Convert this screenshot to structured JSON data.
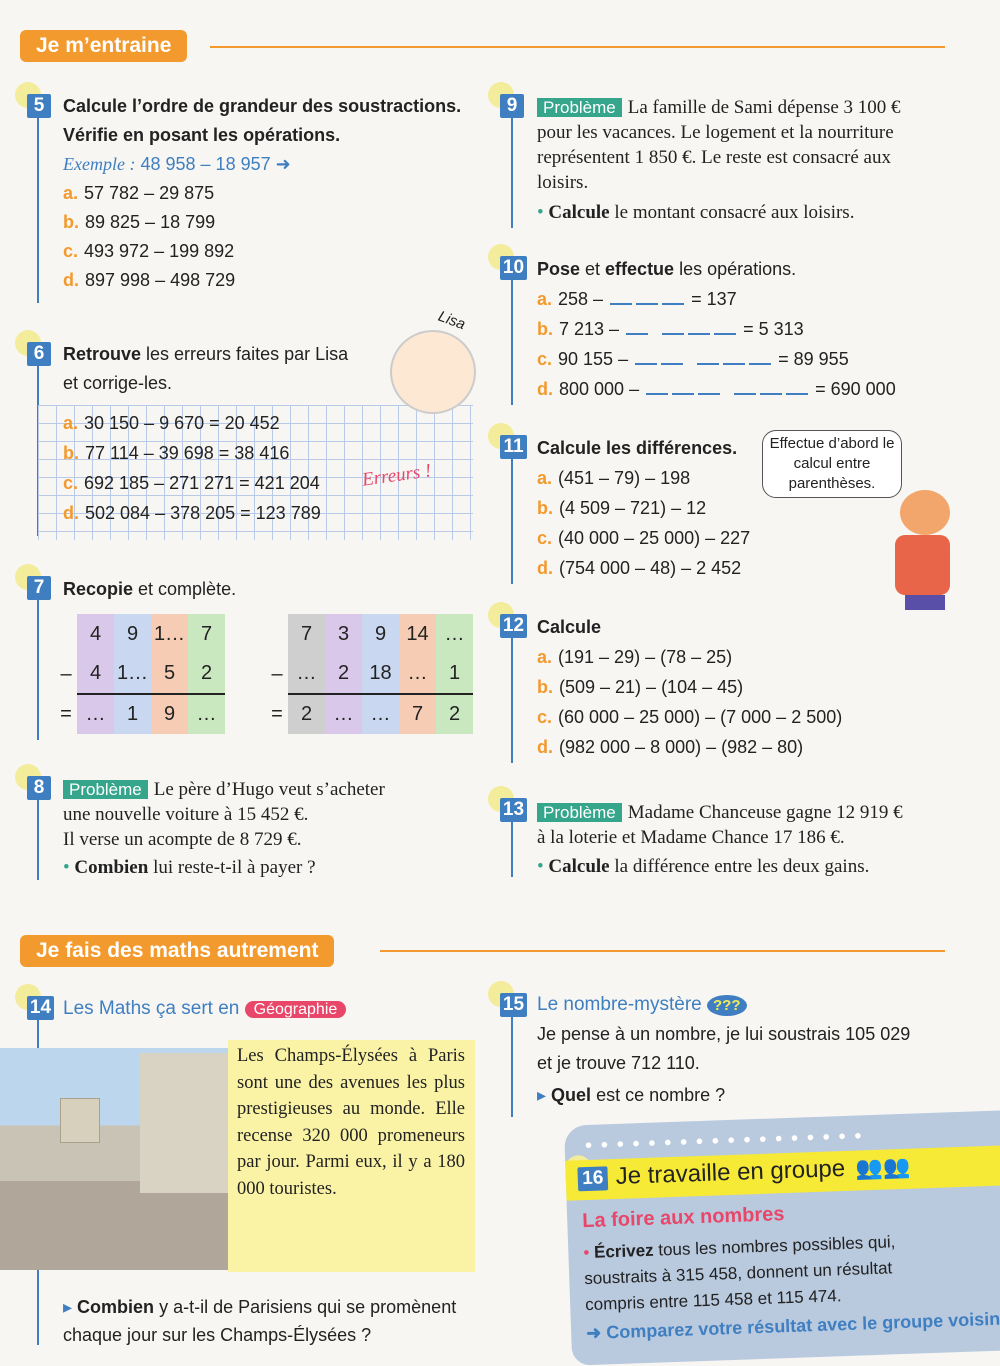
{
  "sections": {
    "train": "Je m’entraine",
    "other": "Je fais des maths autrement"
  },
  "ex5": {
    "num": "5",
    "line1_bold": "Calcule",
    "line1": " l’ordre de grandeur des soustractions.",
    "line2_bold": "Vérifie",
    "line2": " en posant les opérations.",
    "example_label": "Exemple :",
    "example": "48 958 – 18 957 ➜",
    "items": [
      {
        "l": "a.",
        "t": "57 782 – 29 875"
      },
      {
        "l": "b.",
        "t": "89 825 – 18 799"
      },
      {
        "l": "c.",
        "t": "493 972 – 199 892"
      },
      {
        "l": "d.",
        "t": "897 998 – 498 729"
      }
    ]
  },
  "ex6": {
    "num": "6",
    "bold": "Retrouve",
    "text": " les erreurs faites par Lisa",
    "line2": "et corrige-les.",
    "character": "Lisa",
    "errors": "Erreurs !",
    "items": [
      {
        "l": "a.",
        "t": "30 150 – 9 670 = 20 452"
      },
      {
        "l": "b.",
        "t": "77 114 – 39 698 = 38 416"
      },
      {
        "l": "c.",
        "t": "692 185 – 271 271 = 421 204"
      },
      {
        "l": "d.",
        "t": "502 084 – 378 205 = 123 789"
      }
    ]
  },
  "ex7": {
    "num": "7",
    "bold": "Recopie",
    "text": " et complète.",
    "minus": "–",
    "equals": "=",
    "left": [
      [
        "4",
        "9",
        "1…",
        "7"
      ],
      [
        "4",
        "1…",
        "5",
        "2"
      ],
      [
        "…",
        "1",
        "9",
        "…"
      ]
    ],
    "right": [
      [
        "7",
        "3",
        "9",
        "14",
        "…"
      ],
      [
        "…",
        "2",
        "18",
        "…",
        "1"
      ],
      [
        "2",
        "…",
        "…",
        "7",
        "2"
      ]
    ]
  },
  "ex8": {
    "num": "8",
    "badge": "Problème",
    "line1": "Le père d’Hugo veut s’acheter",
    "line2": "une nouvelle voiture à 15 452 €.",
    "line3": "Il verse un acompte de 8 729 €.",
    "q_bold": "Combien",
    "q": " lui reste-t-il à payer ?"
  },
  "ex9": {
    "num": "9",
    "badge": "Problème",
    "line1": "La famille de Sami dépense 3 100 €",
    "line2": "pour les vacances. Le logement et la nourriture",
    "line3": "représentent 1 850 €. Le reste est consacré aux",
    "line4": "loisirs.",
    "q_bold": "Calcule",
    "q": " le montant consacré aux loisirs."
  },
  "ex10": {
    "num": "10",
    "bold1": "Pose",
    "mid": " et ",
    "bold2": "effectue",
    "text": " les opérations.",
    "items": [
      {
        "l": "a.",
        "left": "258 –",
        "right": "= 137"
      },
      {
        "l": "b.",
        "left": "7 213 –",
        "right": "= 5 313"
      },
      {
        "l": "c.",
        "left": "90 155 –",
        "right": "= 89 955"
      },
      {
        "l": "d.",
        "left": "800 000 –",
        "right": "= 690 000"
      }
    ]
  },
  "ex11": {
    "num": "11",
    "bold": "Calcule",
    "text": " les différences.",
    "bubble": "Effectue d’abord le calcul entre parenthèses.",
    "items": [
      {
        "l": "a.",
        "t": "(451 – 79) – 198"
      },
      {
        "l": "b.",
        "t": "(4 509 – 721) – 12"
      },
      {
        "l": "c.",
        "t": "(40 000 – 25 000) – 227"
      },
      {
        "l": "d.",
        "t": "(754 000 – 48) – 2 452"
      }
    ]
  },
  "ex12": {
    "num": "12",
    "bold": "Calcule",
    "items": [
      {
        "l": "a.",
        "t": "(191 – 29) – (78 – 25)"
      },
      {
        "l": "b.",
        "t": "(509 – 21) – (104 – 45)"
      },
      {
        "l": "c.",
        "t": "(60 000 – 25 000) – (7 000 – 2 500)"
      },
      {
        "l": "d.",
        "t": "(982 000 – 8 000) – (982 – 80)"
      }
    ]
  },
  "ex13": {
    "num": "13",
    "badge": "Problème",
    "line1": "Madame Chanceuse gagne 12 919 €",
    "line2": "à la loterie et Madame Chance 17 186 €.",
    "q_bold": "Calcule",
    "q": " la différence entre les deux gains."
  },
  "ex14": {
    "num": "14",
    "title": "Les Maths ça sert en",
    "tag": "Géographie",
    "text": "Les Champs-Élysées à Paris sont une des avenues les plus prestigieuses au monde. Elle recense 320 000 promeneurs par jour. Parmi eux, il y a 180 000 touristes.",
    "q_bold": "Combien",
    "q": " y a-t-il de Parisiens qui se promènent",
    "q2": "chaque jour sur les Champs-Élysées ?"
  },
  "ex15": {
    "num": "15",
    "title": "Le nombre-mystère",
    "icon": "???",
    "line1": "Je pense à un nombre, je lui soustrais 105 029",
    "line2": "et je trouve 712 110.",
    "q_bold": "Quel",
    "q": " est ce nombre ?"
  },
  "ex16": {
    "num": "16",
    "title": "Je travaille en groupe",
    "subtitle": "La foire aux nombres",
    "bold": "Écrivez",
    "text": " tous les nombres possibles qui, soustraits à 315 458, donnent un résultat compris entre 115 458 et 115 474.",
    "compare": "➜ Comparez votre résultat avec le groupe voisin."
  },
  "colors": {
    "orange": "#f39a2e",
    "blue": "#3f7fc1",
    "green": "#35a58c",
    "pink": "#e8476a"
  }
}
